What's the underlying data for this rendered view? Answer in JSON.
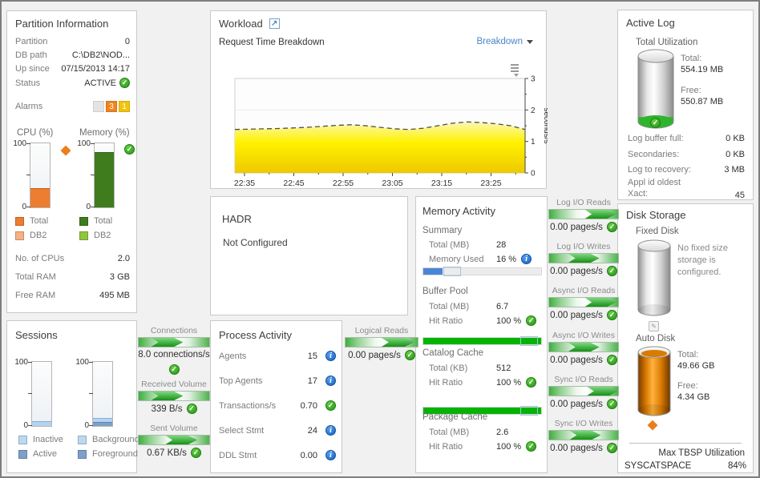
{
  "icons": {
    "ok": "✓",
    "info": "i",
    "warning": "◆",
    "external_link": "↗",
    "edit": "✎"
  },
  "partition_info": {
    "title": "Partition Information",
    "rows": [
      {
        "label": "Partition",
        "value": "0"
      },
      {
        "label": "DB path",
        "value": "C:\\DB2\\NOD..."
      },
      {
        "label": "Up since",
        "value": "07/15/2013 14:17"
      },
      {
        "label": "Status",
        "value": "ACTIVE"
      }
    ],
    "alarms_label": "Alarms",
    "alarm_counts": [
      {
        "count": "3",
        "color": "#f0841e"
      },
      {
        "count": "1",
        "color": "#f2c30c"
      }
    ],
    "cpu_gauge": {
      "title": "CPU (%)",
      "max_label": "100",
      "min_label": "0",
      "segments": [
        {
          "pct": 30,
          "color": "#ed7d31",
          "border": "#c05f17"
        }
      ],
      "legend": [
        {
          "label": "Total",
          "color": "#ed7d31"
        },
        {
          "label": "DB2",
          "color": "#f5b183"
        }
      ]
    },
    "memory_gauge": {
      "title": "Memory (%)",
      "max_label": "100",
      "min_label": "0",
      "segments": [
        {
          "pct": 86,
          "color": "#3e7c1e",
          "border": "#2f5e17"
        }
      ],
      "legend": [
        {
          "label": "Total",
          "color": "#3e7c1e"
        },
        {
          "label": "DB2",
          "color": "#90c63e"
        }
      ]
    },
    "stats": [
      {
        "label": "No. of CPUs",
        "value": "2.0"
      },
      {
        "label": "Total RAM",
        "value": "3 GB"
      },
      {
        "label": "Free RAM",
        "value": "495 MB"
      }
    ]
  },
  "workload": {
    "title": "Workload",
    "subtitle": "Request Time Breakdown",
    "breakdown_label": "Breakdown"
  },
  "chart_data": {
    "type": "area",
    "title": "Request Time Breakdown",
    "ylabel": "seconds/s",
    "ylim": [
      0,
      3
    ],
    "y_ticks": [
      0,
      1,
      2,
      3
    ],
    "x_tick_labels": [
      "22:35",
      "22:45",
      "22:55",
      "23:05",
      "23:15",
      "23:25"
    ],
    "x_tick_minutes": [
      0,
      10,
      20,
      30,
      40,
      50
    ],
    "grid": true,
    "legend_position": "none",
    "series": [
      {
        "name": "Request Time",
        "color": "#ffe600",
        "values": [
          1.38,
          1.39,
          1.4,
          1.41,
          1.43,
          1.45,
          1.48,
          1.51,
          1.53,
          1.5,
          1.45,
          1.4,
          1.38,
          1.42,
          1.5,
          1.58,
          1.62,
          1.6,
          1.56,
          1.5,
          1.38
        ]
      }
    ]
  },
  "hadr": {
    "title": "HADR",
    "message": "Not Configured"
  },
  "memory_activity": {
    "title": "Memory Activity",
    "sections": [
      {
        "name": "Summary",
        "rows": [
          {
            "label": "Total (MB)",
            "value": "28"
          },
          {
            "label": "Memory Used",
            "value": "16 %"
          }
        ],
        "bar": {
          "pct": 16,
          "color": "#4a86d8",
          "marker_pct": 17
        }
      },
      {
        "name": "Buffer Pool",
        "rows": [
          {
            "label": "Total (MB)",
            "value": "6.7"
          },
          {
            "label": "Hit Ratio",
            "value": "100 %"
          }
        ],
        "bar": {
          "pct": 100,
          "color": "#04b404",
          "marker_pct": 82
        }
      },
      {
        "name": "Catalog Cache",
        "rows": [
          {
            "label": "Total (KB)",
            "value": "512"
          },
          {
            "label": "Hit Ratio",
            "value": "100 %"
          }
        ],
        "bar": {
          "pct": 100,
          "color": "#04b404",
          "marker_pct": 82
        }
      },
      {
        "name": "Package Cache",
        "rows": [
          {
            "label": "Total (MB)",
            "value": "2.6"
          },
          {
            "label": "Hit Ratio",
            "value": "100 %"
          }
        ],
        "bar": {
          "pct": 100,
          "color": "#04b404",
          "marker_pct": 82
        }
      }
    ]
  },
  "process_activity": {
    "title": "Process Activity",
    "rows": [
      {
        "label": "Agents",
        "value": "15",
        "icon": "info"
      },
      {
        "label": "Top Agents",
        "value": "17",
        "icon": "info"
      },
      {
        "label": "Transactions/s",
        "value": "0.70",
        "icon": "ok"
      },
      {
        "label": "Select Stmt",
        "value": "24",
        "icon": "info"
      },
      {
        "label": "DDL Stmt",
        "value": "0.00",
        "icon": "info"
      }
    ]
  },
  "sessions": {
    "title": "Sessions",
    "gauge1": {
      "max_label": "100",
      "min_label": "0",
      "segments": [
        {
          "pct": 8,
          "color": "#b3d4f0",
          "border": "#86aed2"
        }
      ],
      "legend": [
        {
          "label": "Inactive",
          "color": "#bcd9f2"
        },
        {
          "label": "Active",
          "color": "#7e9fc9"
        }
      ]
    },
    "gauge2": {
      "max_label": "100",
      "min_label": "0",
      "segments": [
        {
          "pct": 6,
          "color": "#7e9fc9",
          "border": "#5f83ad"
        },
        {
          "pct": 7,
          "color": "#b3d4f0",
          "border": "#86aed2"
        }
      ],
      "legend": [
        {
          "label": "Background",
          "color": "#bcd9f2"
        },
        {
          "label": "Foreground",
          "color": "#7e9fc9"
        }
      ]
    }
  },
  "active_log": {
    "title": "Active Log",
    "section": "Total Utilization",
    "cylinder": {
      "fill_pct": 7,
      "fill_color": "#2eb52c",
      "body": "gray"
    },
    "total_label": "Total:",
    "total_value": "554.19 MB",
    "free_label": "Free:",
    "free_value": "550.87 MB",
    "stats": [
      {
        "label": "Log buffer full:",
        "value": "0 KB"
      },
      {
        "label": "Secondaries:",
        "value": "0 KB"
      },
      {
        "label": "Log to recovery:",
        "value": "3 MB"
      },
      {
        "label": "Appl id oldest Xact:",
        "value": "45"
      }
    ]
  },
  "disk_storage": {
    "title": "Disk Storage",
    "fixed": {
      "label": "Fixed Disk",
      "message": "No fixed size storage is configured.",
      "cylinder": {
        "fill_pct": 0,
        "body": "gray"
      }
    },
    "auto": {
      "label": "Auto Disk",
      "total_label": "Total:",
      "total_value": "49.66 GB",
      "free_label": "Free:",
      "free_value": "4.34 GB",
      "cylinder": {
        "fill_pct": 100,
        "body": "orange"
      }
    },
    "max_tbsp_title": "Max TBSP Utilization",
    "max_tbsp_rows": [
      {
        "name": "SYSCATSPACE",
        "value": "84%"
      }
    ]
  },
  "flows": [
    {
      "label": "Connections",
      "value": "8.0 connections/s"
    },
    {
      "label": "Received Volume",
      "value": "339 B/s"
    },
    {
      "label": "Sent Volume",
      "value": "0.67 KB/s"
    },
    {
      "label": "Logical Reads",
      "value": "0.00 pages/s"
    },
    {
      "label": "Log I/O Reads",
      "value": "0.00 pages/s"
    },
    {
      "label": "Log I/O Writes",
      "value": "0.00 pages/s"
    },
    {
      "label": "Async I/O Reads",
      "value": "0.00 pages/s"
    },
    {
      "label": "Async I/O Writes",
      "value": "0.00 pages/s"
    },
    {
      "label": "Sync I/O Reads",
      "value": "0.00 pages/s"
    },
    {
      "label": "Sync I/O Writes",
      "value": "0.00 pages/s"
    }
  ]
}
